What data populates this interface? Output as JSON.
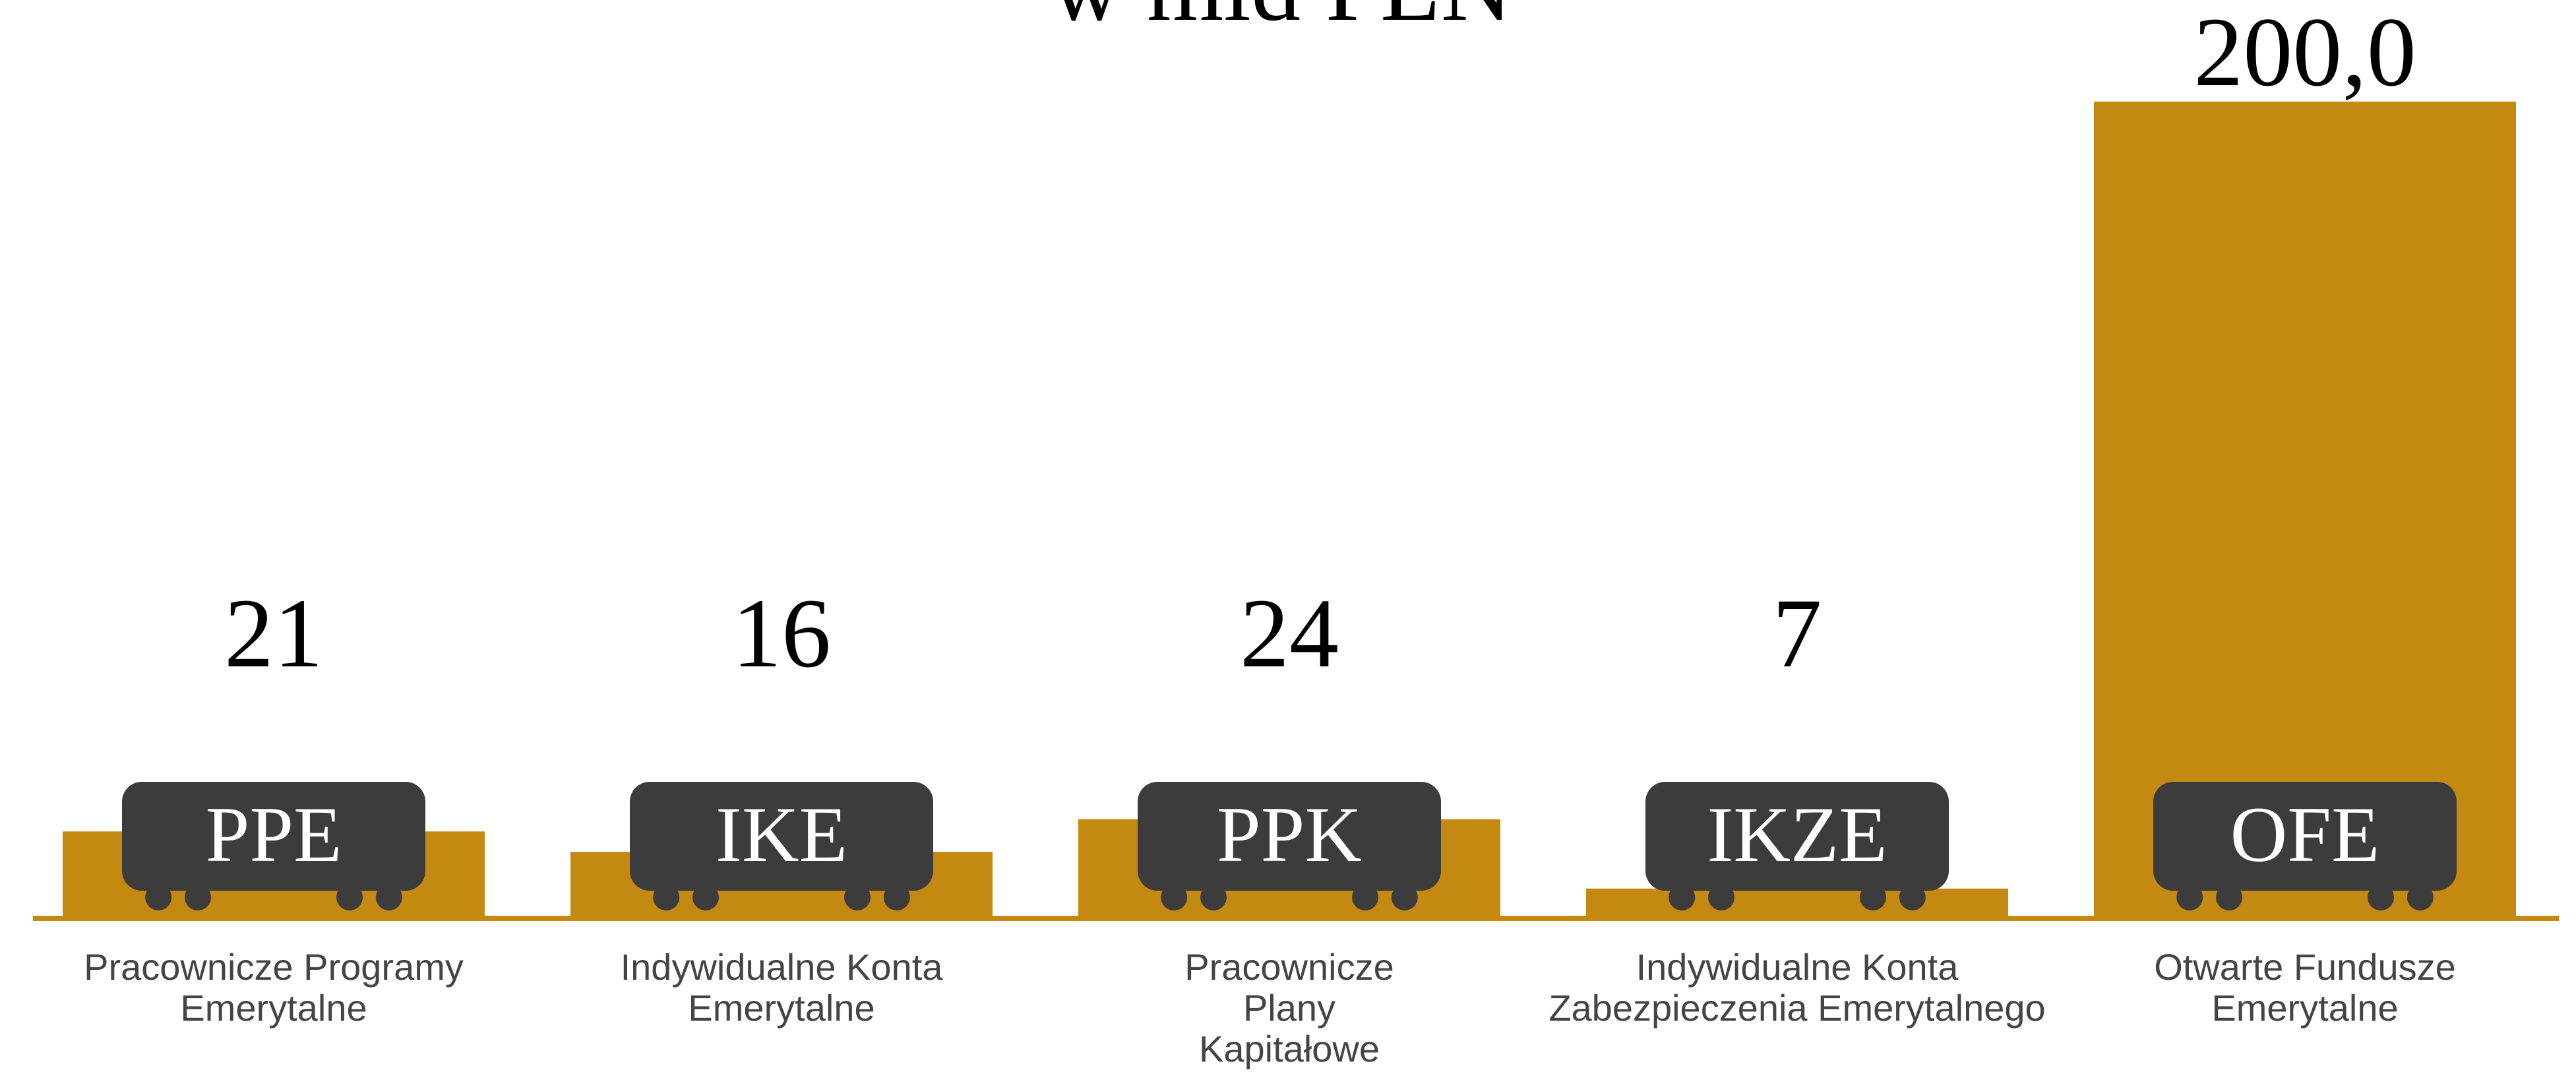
{
  "chart_data": {
    "type": "bar",
    "title": "w mld PLN",
    "categories": [
      "Pracownicze Programy\nEmerytalne",
      "Indywidualne Konta\nEmerytalne",
      "Pracownicze\nPlany\nKapitałowe",
      "Indywidualne Konta\nZabezpieczenia Emerytalnego",
      "Otwarte Fundusze\nEmerytalne"
    ],
    "abbreviations": [
      "PPE",
      "IKE",
      "PPK",
      "IKZE",
      "OFE"
    ],
    "values": [
      21,
      16,
      24,
      7,
      200
    ],
    "value_labels": [
      "21",
      "16",
      "24",
      "7",
      "200,0"
    ],
    "color": "#c38910",
    "ylim": [
      0,
      200
    ]
  }
}
